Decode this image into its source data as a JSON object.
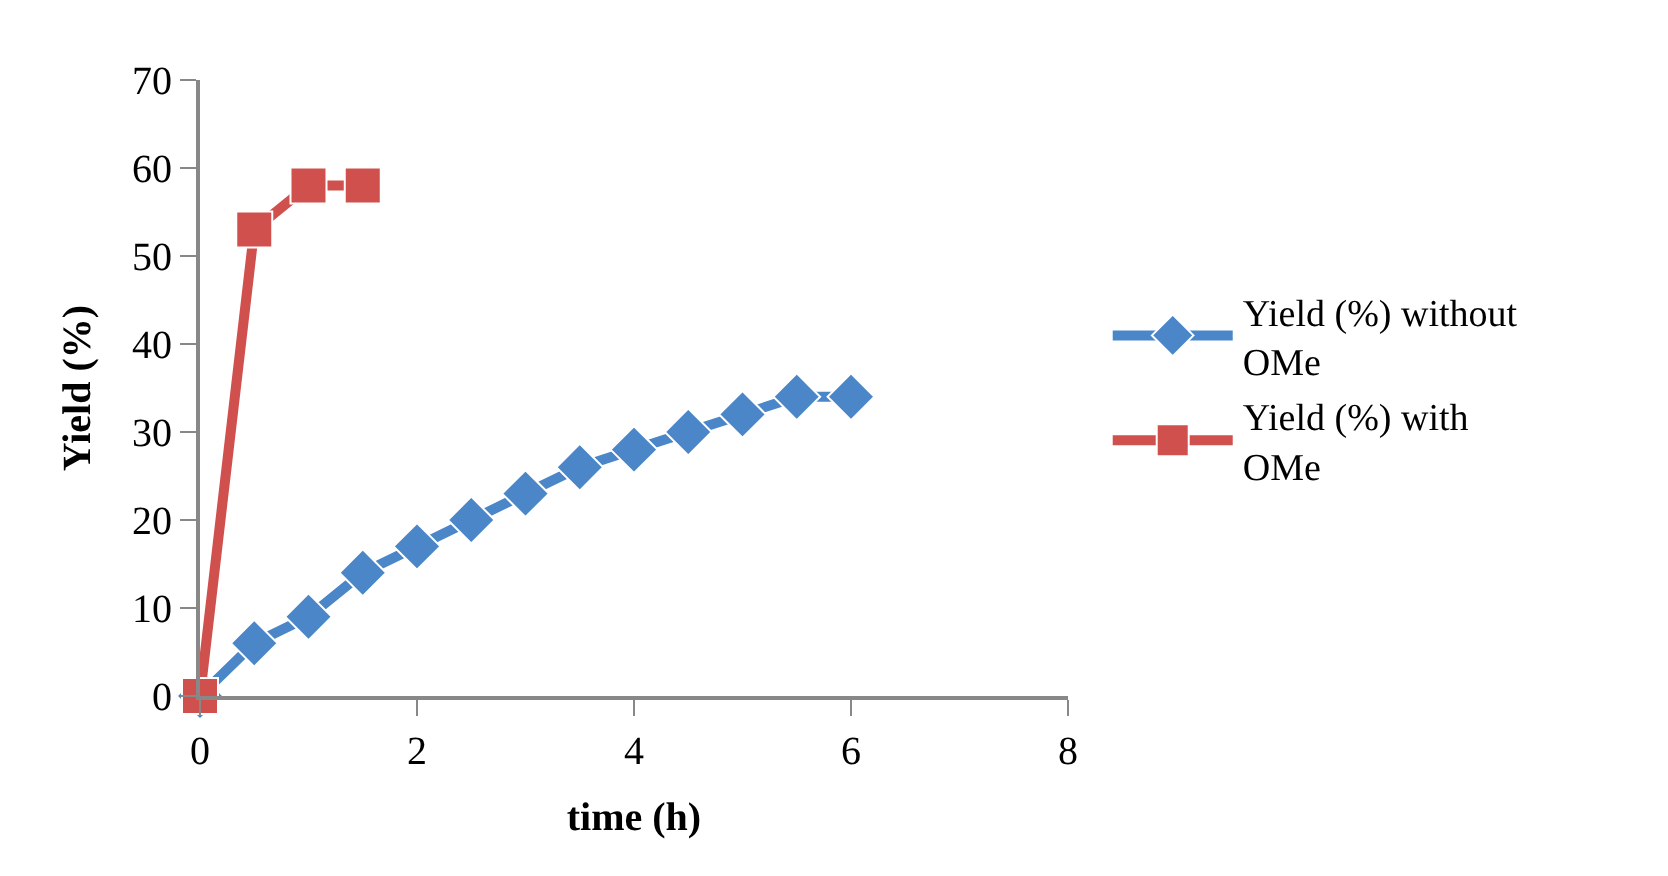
{
  "chart_data": {
    "type": "line",
    "xlabel": "time (h)",
    "ylabel": "Yield (%)",
    "xlim": [
      0,
      8
    ],
    "xticks": [
      0,
      2,
      4,
      6,
      8
    ],
    "ylim": [
      0,
      70
    ],
    "yticks": [
      0,
      10,
      20,
      30,
      40,
      50,
      60,
      70
    ],
    "legend": "right",
    "series": [
      {
        "name": "Yield (%) without OMe",
        "color": "#4a86c8",
        "marker": "diamond",
        "x": [
          0,
          0.5,
          1,
          1.5,
          2,
          2.5,
          3,
          3.5,
          4,
          4.5,
          5,
          5.5,
          6
        ],
        "values": [
          0,
          6,
          9,
          14,
          17,
          20,
          23,
          26,
          28,
          30,
          32,
          34,
          34
        ]
      },
      {
        "name": "Yield (%) with OMe",
        "color": "#d0504d",
        "marker": "square",
        "x": [
          0,
          0.5,
          1,
          1.5
        ],
        "values": [
          0,
          53,
          58,
          58
        ]
      }
    ]
  }
}
